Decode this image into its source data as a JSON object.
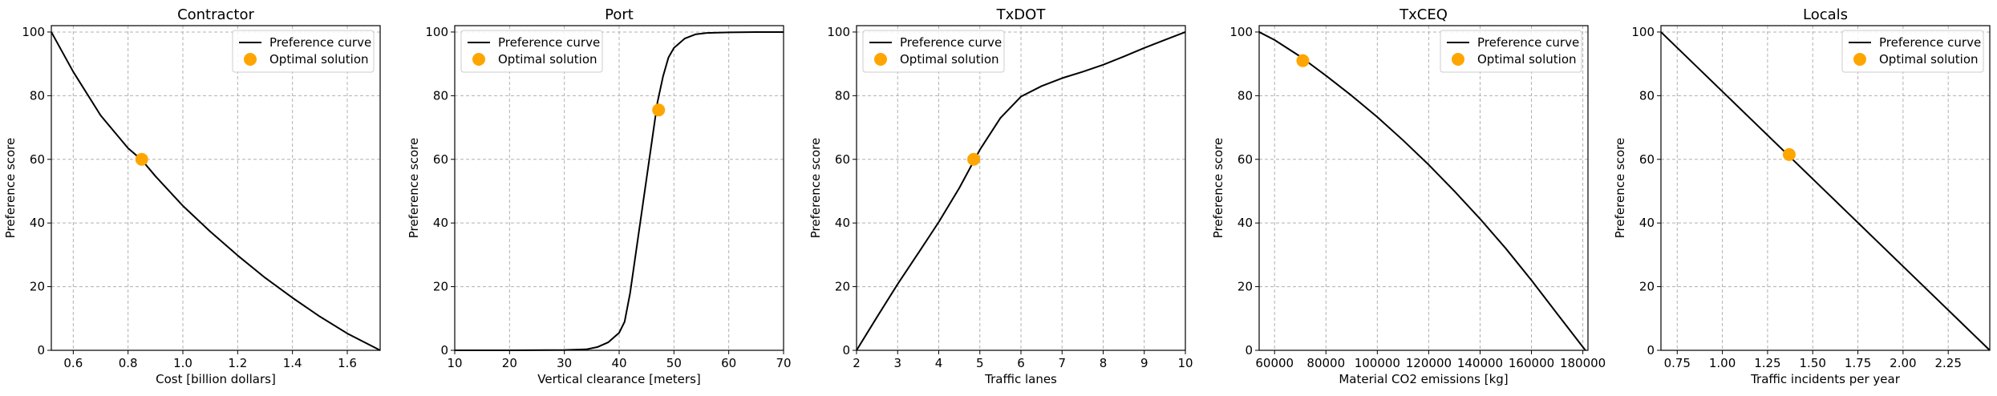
{
  "chart_data": [
    {
      "type": "line",
      "title": "Contractor",
      "xlabel": "Cost [billion dollars]",
      "ylabel": "Preference score",
      "xlim": [
        0.52,
        1.72
      ],
      "ylim": [
        0,
        102
      ],
      "xticks": [
        0.6,
        0.8,
        1.0,
        1.2,
        1.4,
        1.6
      ],
      "xtick_labels": [
        "0.6",
        "0.8",
        "1.0",
        "1.2",
        "1.4",
        "1.6"
      ],
      "yticks": [
        0,
        20,
        40,
        60,
        80,
        100
      ],
      "ytick_labels": [
        "0",
        "20",
        "40",
        "60",
        "80",
        "100"
      ],
      "grid": true,
      "legend_position": "top-right",
      "series": [
        {
          "name": "Preference curve",
          "kind": "line",
          "color": "#000000",
          "x": [
            0.52,
            0.6,
            0.7,
            0.8,
            0.85,
            0.9,
            1.0,
            1.1,
            1.2,
            1.3,
            1.4,
            1.5,
            1.6,
            1.72
          ],
          "y": [
            100,
            87.5,
            73.8,
            63.5,
            59.8,
            54.7,
            45.4,
            37.3,
            29.8,
            22.8,
            16.5,
            10.6,
            5.3,
            0
          ]
        },
        {
          "name": "Optimal solution",
          "kind": "marker",
          "color": "#ffa500",
          "x": [
            0.85
          ],
          "y": [
            60
          ]
        }
      ]
    },
    {
      "type": "line",
      "title": "Port",
      "xlabel": "Vertical clearance [meters]",
      "ylabel": "Preference score",
      "xlim": [
        10,
        70
      ],
      "ylim": [
        0,
        102
      ],
      "xticks": [
        10,
        20,
        30,
        40,
        50,
        60,
        70
      ],
      "xtick_labels": [
        "10",
        "20",
        "30",
        "40",
        "50",
        "60",
        "70"
      ],
      "yticks": [
        0,
        20,
        40,
        60,
        80,
        100
      ],
      "ytick_labels": [
        "0",
        "20",
        "40",
        "60",
        "80",
        "100"
      ],
      "grid": true,
      "legend_position": "top-left",
      "series": [
        {
          "name": "Preference curve",
          "kind": "line",
          "color": "#000000",
          "x": [
            10,
            20,
            30,
            34,
            36,
            38,
            40,
            41,
            42,
            43,
            44,
            45,
            46,
            47,
            48,
            49,
            50,
            52,
            54,
            56,
            60,
            65,
            70
          ],
          "y": [
            0,
            0,
            0.1,
            0.3,
            1,
            2.5,
            5.5,
            9,
            18,
            30,
            42,
            54,
            66,
            78,
            86,
            92,
            95,
            98,
            99.3,
            99.7,
            99.9,
            100,
            100
          ]
        },
        {
          "name": "Optimal solution",
          "kind": "marker",
          "color": "#ffa500",
          "x": [
            47.2
          ],
          "y": [
            75.5
          ]
        }
      ]
    },
    {
      "type": "line",
      "title": "TxDOT",
      "xlabel": "Traffic lanes",
      "ylabel": "Preference score",
      "xlim": [
        2,
        10
      ],
      "ylim": [
        0,
        102
      ],
      "xticks": [
        2,
        3,
        4,
        5,
        6,
        7,
        8,
        9,
        10
      ],
      "xtick_labels": [
        "2",
        "3",
        "4",
        "5",
        "6",
        "7",
        "8",
        "9",
        "10"
      ],
      "yticks": [
        0,
        20,
        40,
        60,
        80,
        100
      ],
      "ytick_labels": [
        "0",
        "20",
        "40",
        "60",
        "80",
        "100"
      ],
      "grid": true,
      "legend_position": "top-left",
      "series": [
        {
          "name": "Preference curve",
          "kind": "line",
          "color": "#000000",
          "x": [
            2,
            2.5,
            3,
            3.5,
            4,
            4.5,
            5,
            5.5,
            6,
            6.5,
            7,
            7.5,
            8,
            8.5,
            9,
            9.5,
            10
          ],
          "y": [
            0,
            10.5,
            20.8,
            30.5,
            40.3,
            51,
            63,
            73,
            79.7,
            83,
            85.5,
            87.5,
            89.7,
            92.3,
            95,
            97.5,
            100
          ]
        },
        {
          "name": "Optimal solution",
          "kind": "marker",
          "color": "#ffa500",
          "x": [
            4.85
          ],
          "y": [
            60
          ]
        }
      ]
    },
    {
      "type": "line",
      "title": "TxCEQ",
      "xlabel": "Material CO2 emissions [kg]",
      "ylabel": "Preference score",
      "xlim": [
        54000,
        182000
      ],
      "ylim": [
        0,
        102
      ],
      "xticks": [
        60000,
        80000,
        100000,
        120000,
        140000,
        160000,
        180000
      ],
      "xtick_labels": [
        "60000",
        "80000",
        "100000",
        "120000",
        "140000",
        "160000",
        "180000"
      ],
      "yticks": [
        0,
        20,
        40,
        60,
        80,
        100
      ],
      "ytick_labels": [
        "0",
        "20",
        "40",
        "60",
        "80",
        "100"
      ],
      "grid": true,
      "legend_position": "top-right",
      "series": [
        {
          "name": "Preference curve",
          "kind": "line",
          "color": "#000000",
          "x": [
            54000,
            60000,
            70000,
            80000,
            90000,
            100000,
            110000,
            120000,
            130000,
            140000,
            150000,
            160000,
            170000,
            181000
          ],
          "y": [
            100,
            97.5,
            92.3,
            86.3,
            80,
            73.3,
            66,
            58.3,
            50,
            41.3,
            32,
            22,
            11.5,
            0
          ]
        },
        {
          "name": "Optimal solution",
          "kind": "marker",
          "color": "#ffa500",
          "x": [
            71000
          ],
          "y": [
            91
          ]
        }
      ]
    },
    {
      "type": "line",
      "title": "Locals",
      "xlabel": "Traffic incidents per year",
      "ylabel": "Preference score",
      "xlim": [
        0.66,
        2.48
      ],
      "ylim": [
        0,
        102
      ],
      "xticks": [
        0.75,
        1.0,
        1.25,
        1.5,
        1.75,
        2.0,
        2.25
      ],
      "xtick_labels": [
        "0.75",
        "1.00",
        "1.25",
        "1.50",
        "1.75",
        "2.00",
        "2.25"
      ],
      "yticks": [
        0,
        20,
        40,
        60,
        80,
        100
      ],
      "ytick_labels": [
        "0",
        "20",
        "40",
        "60",
        "80",
        "100"
      ],
      "grid": true,
      "legend_position": "top-right",
      "series": [
        {
          "name": "Preference curve",
          "kind": "line",
          "color": "#000000",
          "x": [
            0.66,
            2.48
          ],
          "y": [
            100,
            0
          ]
        },
        {
          "name": "Optimal solution",
          "kind": "marker",
          "color": "#ffa500",
          "x": [
            1.37
          ],
          "y": [
            61.5
          ]
        }
      ]
    }
  ]
}
